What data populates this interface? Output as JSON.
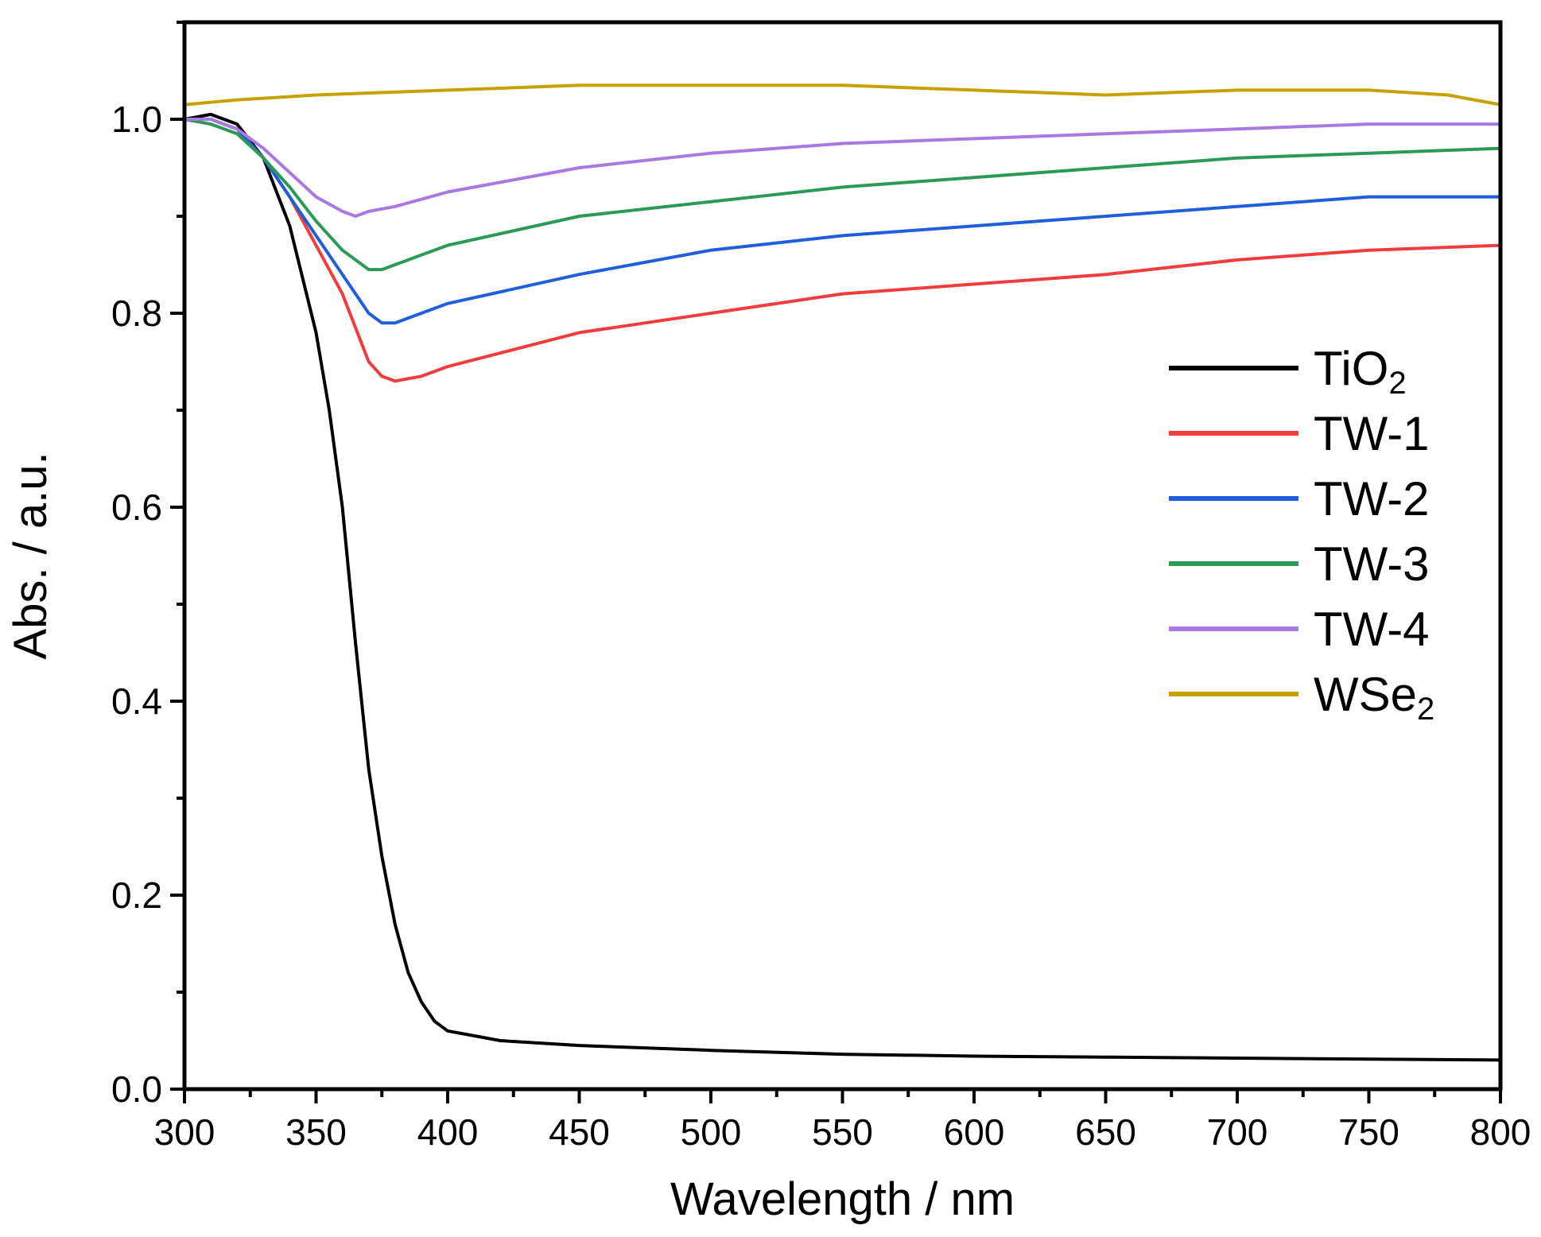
{
  "chart_data": {
    "type": "line",
    "title": "",
    "xlabel": "Wavelength / nm",
    "ylabel": "Abs. / a.u.",
    "xlim": [
      300,
      800
    ],
    "ylim": [
      0.0,
      1.1
    ],
    "xticks": [
      "300",
      "350",
      "400",
      "450",
      "500",
      "550",
      "600",
      "650",
      "700",
      "750",
      "800"
    ],
    "yticks": [
      "0.0",
      "0.2",
      "0.4",
      "0.6",
      "0.8",
      "1.0"
    ],
    "legend_position": "right",
    "series": [
      {
        "name": "TiO2",
        "base": "TiO",
        "sub": "2",
        "color": "#000000",
        "x": [
          300,
          310,
          320,
          330,
          340,
          350,
          355,
          360,
          365,
          370,
          375,
          380,
          385,
          390,
          395,
          400,
          410,
          420,
          450,
          500,
          550,
          600,
          650,
          700,
          750,
          800
        ],
        "y": [
          1.0,
          1.005,
          0.995,
          0.96,
          0.89,
          0.78,
          0.7,
          0.6,
          0.46,
          0.33,
          0.24,
          0.17,
          0.12,
          0.09,
          0.07,
          0.06,
          0.055,
          0.05,
          0.045,
          0.04,
          0.036,
          0.034,
          0.033,
          0.032,
          0.031,
          0.03
        ]
      },
      {
        "name": "TW-1",
        "base": "TW-1",
        "sub": "",
        "color": "#f03c3c",
        "x": [
          300,
          310,
          320,
          330,
          340,
          350,
          360,
          370,
          375,
          380,
          390,
          400,
          450,
          500,
          550,
          600,
          650,
          700,
          750,
          800
        ],
        "y": [
          1.0,
          1.0,
          0.99,
          0.96,
          0.92,
          0.87,
          0.82,
          0.75,
          0.735,
          0.73,
          0.735,
          0.745,
          0.78,
          0.8,
          0.82,
          0.83,
          0.84,
          0.855,
          0.865,
          0.87
        ]
      },
      {
        "name": "TW-2",
        "base": "TW-2",
        "sub": "",
        "color": "#1f5fdc",
        "x": [
          300,
          310,
          320,
          330,
          340,
          350,
          360,
          370,
          375,
          380,
          390,
          400,
          450,
          500,
          550,
          600,
          650,
          700,
          750,
          800
        ],
        "y": [
          1.0,
          1.0,
          0.99,
          0.96,
          0.92,
          0.88,
          0.84,
          0.8,
          0.79,
          0.79,
          0.8,
          0.81,
          0.84,
          0.865,
          0.88,
          0.89,
          0.9,
          0.91,
          0.92,
          0.92
        ]
      },
      {
        "name": "TW-3",
        "base": "TW-3",
        "sub": "",
        "color": "#2a9a55",
        "x": [
          300,
          310,
          320,
          330,
          340,
          350,
          360,
          370,
          375,
          380,
          390,
          400,
          450,
          500,
          550,
          600,
          650,
          700,
          750,
          800
        ],
        "y": [
          1.0,
          0.995,
          0.985,
          0.96,
          0.93,
          0.895,
          0.865,
          0.845,
          0.845,
          0.85,
          0.86,
          0.87,
          0.9,
          0.915,
          0.93,
          0.94,
          0.95,
          0.96,
          0.965,
          0.97
        ]
      },
      {
        "name": "TW-4",
        "base": "TW-4",
        "sub": "",
        "color": "#a978e0",
        "x": [
          300,
          310,
          320,
          330,
          340,
          350,
          360,
          365,
          370,
          380,
          400,
          450,
          500,
          550,
          600,
          650,
          700,
          750,
          800
        ],
        "y": [
          1.0,
          1.0,
          0.99,
          0.97,
          0.945,
          0.92,
          0.905,
          0.9,
          0.905,
          0.91,
          0.925,
          0.95,
          0.965,
          0.975,
          0.98,
          0.985,
          0.99,
          0.995,
          0.995
        ]
      },
      {
        "name": "WSe2",
        "base": "WSe",
        "sub": "2",
        "color": "#c8a000",
        "x": [
          300,
          320,
          350,
          400,
          450,
          500,
          550,
          600,
          650,
          700,
          750,
          780,
          800
        ],
        "y": [
          1.015,
          1.02,
          1.025,
          1.03,
          1.035,
          1.035,
          1.035,
          1.03,
          1.025,
          1.03,
          1.03,
          1.025,
          1.015
        ]
      }
    ]
  }
}
